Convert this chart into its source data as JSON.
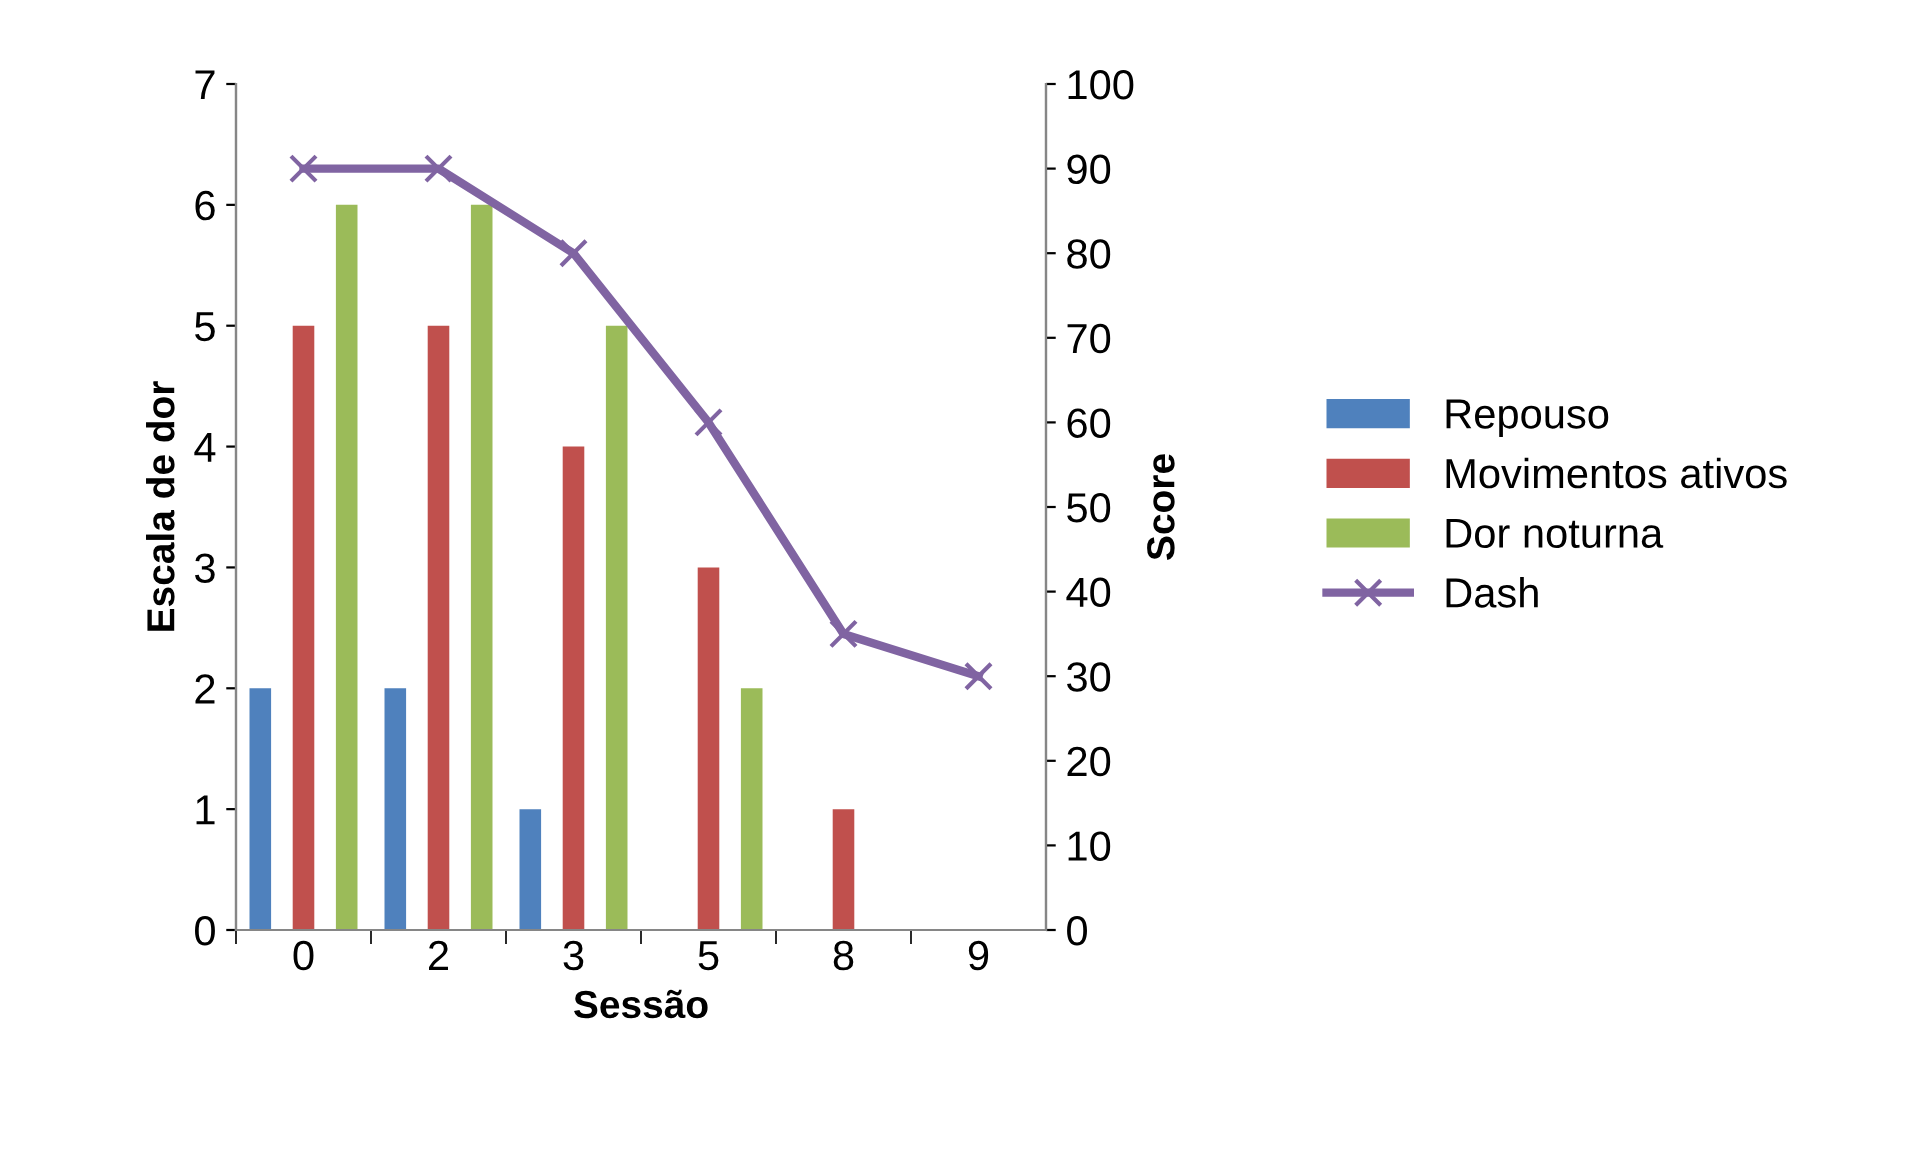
{
  "chart_data": {
    "type": "bar",
    "xlabel": "Sessão",
    "ylabel": "Escala de dor",
    "y2label": "Score",
    "categories": [
      "0",
      "2",
      "3",
      "5",
      "8",
      "9"
    ],
    "ylim": [
      0,
      7
    ],
    "yticks": [
      0,
      1,
      2,
      3,
      4,
      5,
      6,
      7
    ],
    "y2lim": [
      0,
      100
    ],
    "y2ticks": [
      0,
      10,
      20,
      30,
      40,
      50,
      60,
      70,
      80,
      90,
      100
    ],
    "grid": false,
    "legend": "right",
    "series": [
      {
        "name": "Repouso",
        "color": "#4f81bd",
        "values": [
          2,
          2,
          1,
          0,
          0,
          0
        ]
      },
      {
        "name": "Movimentos ativos",
        "color": "#c0504d",
        "values": [
          5,
          5,
          4,
          3,
          1,
          0
        ]
      },
      {
        "name": "Dor noturna",
        "color": "#9bbb59",
        "values": [
          6,
          6,
          5,
          2,
          0,
          0
        ]
      },
      {
        "name": "Dash",
        "type": "line",
        "axis": "y2",
        "color": "#8064a2",
        "marker": "cross",
        "line_style": "solid",
        "values": [
          90,
          90,
          80,
          60,
          35,
          30
        ]
      }
    ]
  }
}
